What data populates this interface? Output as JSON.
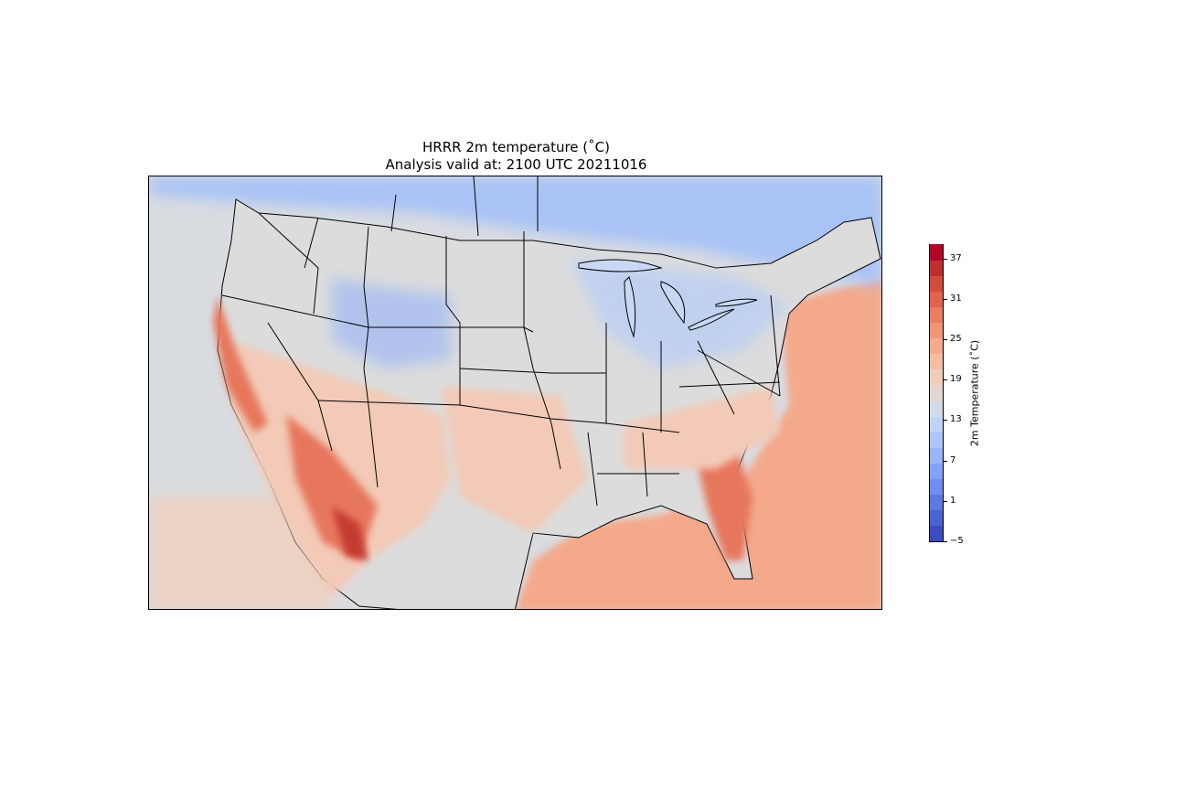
{
  "title": {
    "line1": "HRRR 2m temperature (˚C)",
    "line2": "Analysis valid at: 2100 UTC 20211016"
  },
  "colorbar": {
    "label": "2m Temperature (˚C)",
    "ticks": [
      "−5",
      "1",
      "7",
      "13",
      "19",
      "25",
      "31",
      "37"
    ],
    "min": -5,
    "max": 39,
    "colors": [
      "#3b4cc0",
      "#4a63d3",
      "#5b7ae4",
      "#6e8ff0",
      "#83a3f8",
      "#98b5fd",
      "#acc5fe",
      "#c0d3f5",
      "#d2dbe8",
      "#e3d8cf",
      "#f0cdb9",
      "#f5bda2",
      "#f6aa8b",
      "#f39475",
      "#ec7d60",
      "#e1644c",
      "#d24b3b",
      "#bf2f2d",
      "#b40426"
    ]
  },
  "map": {
    "type": "temperature-map",
    "region": "CONUS",
    "colors": {
      "ocean_north": "#c7d6ef",
      "ocean_pacific": "#d9dce1",
      "ocean_pacific_south": "#ecd3c4",
      "ocean_atlantic": "#f4a98b",
      "gulf": "#f39a7d",
      "land_base": "#dcdcdc",
      "canada": "#a9c3f6",
      "warm_land": "#f2cab7",
      "hot_land": "#e7775c",
      "hottest": "#c53a33",
      "cold": "#8fb0fb"
    }
  }
}
